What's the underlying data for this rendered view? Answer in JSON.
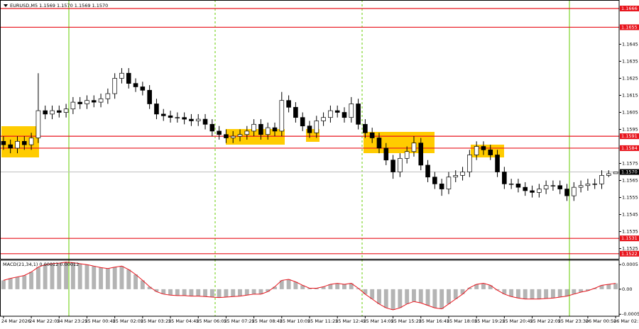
{
  "chart_data": [
    {
      "type": "candlestick",
      "title": "EURUSD,M5 1.1569 1.1570 1.1569 1.1570",
      "categories": [
        "24 Mar 2026",
        null,
        null,
        null,
        "24 Mar 22:05",
        null,
        null,
        null,
        "24 Mar 23:25",
        null,
        null,
        null,
        "25 Mar 00:45",
        null,
        null,
        null,
        "25 Mar 02:05",
        null,
        null,
        null,
        "25 Mar 03:25",
        null,
        null,
        null,
        "25 Mar 04:45",
        null,
        null,
        null,
        "25 Mar 06:05",
        null,
        null,
        null,
        "25 Mar 07:25",
        null,
        null,
        null,
        "25 Mar 08:45",
        null,
        null,
        null,
        "25 Mar 10:05",
        null,
        null,
        null,
        "25 Mar 11:25",
        null,
        null,
        null,
        "25 Mar 12:45",
        null,
        null,
        null,
        "25 Mar 14:05",
        null,
        null,
        null,
        "25 Mar 15:25",
        null,
        null,
        null,
        "25 Mar 16:45",
        null,
        null,
        null,
        "25 Mar 18:05",
        null,
        null,
        null,
        "25 Mar 19:25",
        null,
        null,
        null,
        "25 Mar 20:45",
        null,
        null,
        null,
        "25 Mar 22:05",
        null,
        null,
        null,
        "25 Mar 23:30",
        null,
        null,
        null,
        "26 Mar 00:50",
        null,
        null,
        null,
        "26 Mar 02:10"
      ],
      "open": [
        1.1588,
        1.1586,
        1.1584,
        1.1588,
        1.1586,
        1.159,
        1.1606,
        1.1604,
        1.1606,
        1.1605,
        1.1607,
        1.1611,
        1.161,
        1.1612,
        1.1611,
        1.1613,
        1.1616,
        1.1625,
        1.1628,
        1.1622,
        1.162,
        1.1618,
        1.161,
        1.1604,
        1.1603,
        1.1602,
        1.1602,
        1.1601,
        1.16,
        1.1601,
        1.1598,
        1.1594,
        1.1592,
        1.159,
        1.1591,
        1.1592,
        1.1594,
        1.1598,
        1.1592,
        1.1596,
        1.1594,
        1.1612,
        1.1608,
        1.1602,
        1.1597,
        1.1593,
        1.16,
        1.1602,
        1.1606,
        1.1605,
        1.1602,
        1.161,
        1.1598,
        1.1593,
        1.159,
        1.1584,
        1.1577,
        1.157,
        1.1578,
        1.1582,
        1.1587,
        1.1574,
        1.1567,
        1.1563,
        1.156,
        1.1567,
        1.1568,
        1.157,
        1.158,
        1.1585,
        1.1583,
        1.158,
        1.157,
        1.1563,
        1.1563,
        1.1561,
        1.1559,
        1.1558,
        1.156,
        1.1562,
        1.1562,
        1.156,
        1.1556,
        1.1561,
        1.1562,
        1.1563,
        1.1563,
        1.1568,
        1.1569
      ],
      "high": [
        1.1591,
        1.1589,
        1.1591,
        1.1591,
        1.1593,
        1.1628,
        1.1609,
        1.1609,
        1.1609,
        1.161,
        1.1614,
        1.1614,
        1.1615,
        1.1615,
        1.1616,
        1.1619,
        1.1628,
        1.1631,
        1.1631,
        1.1625,
        1.1623,
        1.1621,
        1.1613,
        1.1607,
        1.1606,
        1.1605,
        1.1605,
        1.1604,
        1.1604,
        1.1604,
        1.1601,
        1.1597,
        1.1595,
        1.1594,
        1.1595,
        1.1597,
        1.1601,
        1.1601,
        1.1599,
        1.1599,
        1.1617,
        1.1615,
        1.1611,
        1.1605,
        1.16,
        1.1603,
        1.1605,
        1.1609,
        1.1609,
        1.1608,
        1.1614,
        1.1613,
        1.1601,
        1.1596,
        1.1593,
        1.1587,
        1.158,
        1.1581,
        1.1585,
        1.1591,
        1.159,
        1.1577,
        1.157,
        1.1566,
        1.157,
        1.1571,
        1.1573,
        1.1583,
        1.1588,
        1.1588,
        1.1586,
        1.1583,
        1.1573,
        1.1566,
        1.1566,
        1.1564,
        1.1562,
        1.1563,
        1.1565,
        1.1565,
        1.1565,
        1.1563,
        1.1564,
        1.1565,
        1.1566,
        1.1566,
        1.1571,
        1.1571,
        1.157
      ],
      "low": [
        1.1583,
        1.1581,
        1.1581,
        1.1583,
        1.1583,
        1.1587,
        1.1601,
        1.1601,
        1.1602,
        1.1602,
        1.1604,
        1.1607,
        1.1607,
        1.1608,
        1.1608,
        1.161,
        1.1613,
        1.1622,
        1.1619,
        1.1617,
        1.1615,
        1.1607,
        1.1601,
        1.16,
        1.1599,
        1.1599,
        1.1598,
        1.1597,
        1.1597,
        1.1595,
        1.1591,
        1.1589,
        1.1587,
        1.1587,
        1.1588,
        1.1589,
        1.1591,
        1.1589,
        1.1589,
        1.1591,
        1.1591,
        1.1605,
        1.1599,
        1.1594,
        1.159,
        1.159,
        1.1597,
        1.1599,
        1.1602,
        1.1599,
        1.1599,
        1.1595,
        1.159,
        1.1587,
        1.1581,
        1.1574,
        1.1566,
        1.1567,
        1.1575,
        1.1579,
        1.1571,
        1.1564,
        1.156,
        1.1556,
        1.1557,
        1.1564,
        1.1565,
        1.1567,
        1.1577,
        1.158,
        1.1577,
        1.1567,
        1.156,
        1.156,
        1.1558,
        1.1556,
        1.1555,
        1.1555,
        1.1557,
        1.1559,
        1.1557,
        1.1553,
        1.1553,
        1.1558,
        1.1559,
        1.156,
        1.156,
        1.1567,
        1.1569
      ],
      "close": [
        1.1586,
        1.1584,
        1.1588,
        1.1586,
        1.159,
        1.1606,
        1.1604,
        1.1606,
        1.1605,
        1.1607,
        1.1611,
        1.161,
        1.1612,
        1.1611,
        1.1613,
        1.1616,
        1.1625,
        1.1628,
        1.1622,
        1.162,
        1.1618,
        1.161,
        1.1604,
        1.1603,
        1.1602,
        1.1602,
        1.1601,
        1.16,
        1.1601,
        1.1598,
        1.1594,
        1.1592,
        1.159,
        1.1591,
        1.1592,
        1.1594,
        1.1598,
        1.1592,
        1.1596,
        1.1594,
        1.1612,
        1.1608,
        1.1602,
        1.1597,
        1.1593,
        1.16,
        1.1602,
        1.1606,
        1.1605,
        1.1602,
        1.161,
        1.1598,
        1.1593,
        1.159,
        1.1584,
        1.1577,
        1.157,
        1.1578,
        1.1582,
        1.1587,
        1.1574,
        1.1567,
        1.1563,
        1.156,
        1.1567,
        1.1568,
        1.157,
        1.158,
        1.1585,
        1.1583,
        1.158,
        1.157,
        1.1563,
        1.1563,
        1.1561,
        1.1559,
        1.1558,
        1.156,
        1.1562,
        1.1562,
        1.156,
        1.1556,
        1.1561,
        1.1562,
        1.1563,
        1.1563,
        1.1568,
        1.1569,
        1.157
      ],
      "ylim": [
        1.1519,
        1.1671
      ],
      "yticks": [
        1.1525,
        1.1535,
        1.1545,
        1.1555,
        1.1565,
        1.1575,
        1.1595,
        1.1605,
        1.1615,
        1.1625,
        1.1635,
        1.1645
      ],
      "levels": [
        1.1666,
        1.1655,
        1.1591,
        1.1584,
        1.1531,
        1.1522
      ],
      "level_color": "#e8141c",
      "last_price": {
        "value": 1.157,
        "label": "1.1570"
      }
    },
    {
      "type": "macd",
      "title": "MACD(21,34,1) 0.00012 0.00012",
      "values": [
        0.00018,
        0.00022,
        0.00025,
        0.00028,
        0.00035,
        0.00045,
        0.0005,
        0.00052,
        0.00053,
        0.00055,
        0.00054,
        0.00052,
        0.0005,
        0.00047,
        0.00044,
        0.00042,
        0.00045,
        0.00047,
        0.0004,
        0.0003,
        0.00018,
        5e-05,
        -5e-05,
        -0.0001,
        -0.00012,
        -0.00013,
        -0.00013,
        -0.00014,
        -0.00014,
        -0.00015,
        -0.00016,
        -0.00017,
        -0.00016,
        -0.00015,
        -0.00014,
        -0.00012,
        -0.0001,
        -0.0001,
        -5e-05,
        5e-05,
        0.00018,
        0.0002,
        0.00015,
        8e-05,
        2e-05,
        2e-05,
        5e-05,
        0.0001,
        0.00012,
        0.0001,
        0.00012,
        2e-05,
        -0.0001,
        -0.0002,
        -0.0003,
        -0.00038,
        -0.00042,
        -0.00038,
        -0.0003,
        -0.00025,
        -0.00028,
        -0.00033,
        -0.00038,
        -0.0004,
        -0.0003,
        -0.0002,
        -0.0001,
        3e-05,
        0.0001,
        0.00012,
        8e-05,
        -2e-05,
        -0.0001,
        -0.00015,
        -0.00018,
        -0.0002,
        -0.0002,
        -0.0002,
        -0.00019,
        -0.00018,
        -0.00016,
        -0.00014,
        -0.0001,
        -6e-05,
        -3e-05,
        2e-05,
        8e-05,
        0.0001,
        0.00012
      ],
      "color": "#b4b4b4",
      "line_color": "#e8141c",
      "ylim": [
        -0.00055,
        0.00059
      ],
      "yticks": [
        0.0005,
        {
          "value": 0,
          "label": "0.00"
        },
        -0.00051
      ]
    }
  ]
}
